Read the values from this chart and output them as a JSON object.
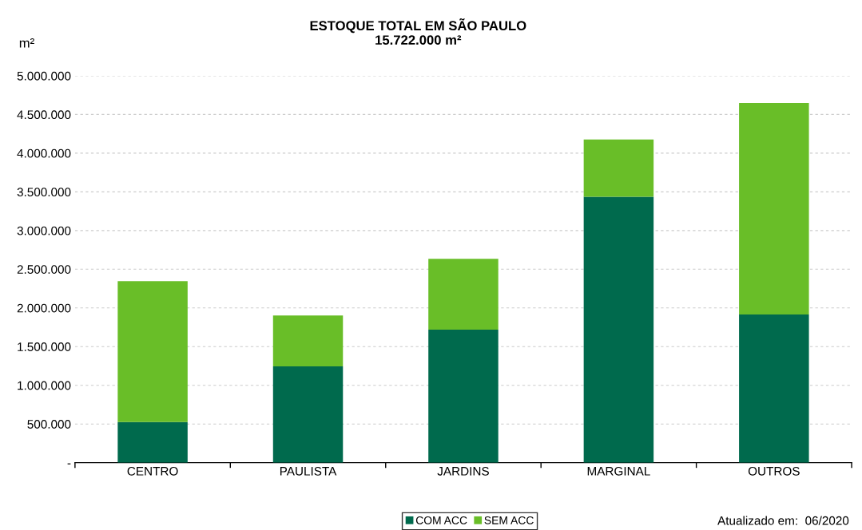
{
  "chart_data": {
    "type": "bar",
    "stacked": true,
    "title": "ESTOQUE TOTAL EM SÃO PAULO\n15.722.000 m²",
    "ylabel": "m²",
    "categories": [
      "CENTRO",
      "PAULISTA",
      "JARDINS",
      "MARGINAL",
      "OUTROS"
    ],
    "series": [
      {
        "name": "COM ACC",
        "color": "#006a4d",
        "values": [
          525000,
          1245000,
          1718000,
          3436000,
          1914000
        ]
      },
      {
        "name": "SEM ACC",
        "color": "#69be28",
        "values": [
          1821000,
          658000,
          916000,
          741000,
          2736000
        ]
      }
    ],
    "ylim": [
      0,
      5000000
    ],
    "yticks": [
      {
        "value": 0,
        "label": "-"
      },
      {
        "value": 500000,
        "label": "500.000"
      },
      {
        "value": 1000000,
        "label": "1.000.000"
      },
      {
        "value": 1500000,
        "label": "1.500.000"
      },
      {
        "value": 2000000,
        "label": "2.000.000"
      },
      {
        "value": 2500000,
        "label": "2.500.000"
      },
      {
        "value": 3000000,
        "label": "3.000.000"
      },
      {
        "value": 3500000,
        "label": "3.500.000"
      },
      {
        "value": 4000000,
        "label": "4.000.000"
      },
      {
        "value": 4500000,
        "label": "4.500.000"
      },
      {
        "value": 5000000,
        "label": "5.000.000"
      }
    ],
    "grid": "y",
    "legend": "bottom",
    "annotations": [
      "Atualizado em:  06/2020"
    ]
  }
}
